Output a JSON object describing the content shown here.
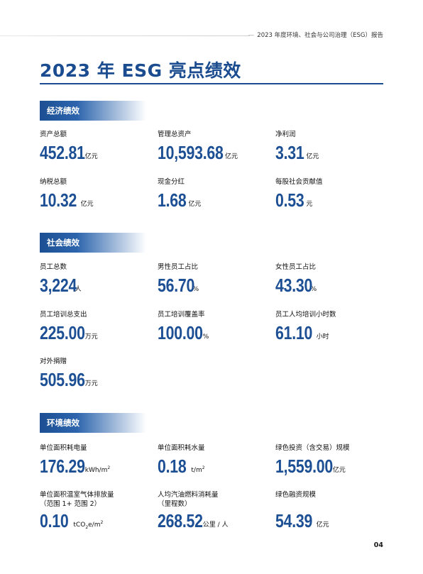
{
  "header": {
    "report_title": "2023 年度环境、社会与公司治理（ESG）报告"
  },
  "page_title": "2023 年 ESG 亮点绩效",
  "sections": {
    "economic": {
      "title": "经济绩效",
      "items": [
        {
          "label": "资产总额",
          "value": "452.81",
          "unit": "亿元"
        },
        {
          "label": "管理总资产",
          "value": "10,593.68",
          "unit": "亿元"
        },
        {
          "label": "净利润",
          "value": "3.31",
          "unit": "亿元"
        },
        {
          "label": "纳税总额",
          "value": "10.32",
          "unit": "亿元"
        },
        {
          "label": "现金分红",
          "value": "1.68",
          "unit": "亿元"
        },
        {
          "label": "每股社会贡献值",
          "value": "0.53",
          "unit": "元"
        }
      ]
    },
    "social": {
      "title": "社会绩效",
      "items": [
        {
          "label": "员工总数",
          "value": "3,224",
          "unit": "人"
        },
        {
          "label": "男性员工占比",
          "value": "56.70",
          "unit": "%"
        },
        {
          "label": "女性员工占比",
          "value": "43.30",
          "unit": "%"
        },
        {
          "label": "员工培训总支出",
          "value": "225.00",
          "unit": "万元"
        },
        {
          "label": "员工培训覆盖率",
          "value": "100.00",
          "unit": "%"
        },
        {
          "label": "员工人均培训小时数",
          "value": "61.10",
          "unit": "小时"
        },
        {
          "label": "对外捐赠",
          "value": "505.96",
          "unit": "万元"
        }
      ]
    },
    "environmental": {
      "title": "环境绩效",
      "items": [
        {
          "label": "单位面积耗电量",
          "value": "176.29",
          "unit_main": "kWh/m",
          "unit_sup": "2"
        },
        {
          "label": "单位面积耗水量",
          "value": "0.18",
          "unit_main": "t/m",
          "unit_sup": "2"
        },
        {
          "label": "绿色投资（含交易）规模",
          "value": "1,559.00",
          "unit": "亿元"
        },
        {
          "label": "单位面积温室气体排放量",
          "label2": "（范围 1+ 范围 2）",
          "value": "0.10",
          "unit_pre": "tCO",
          "unit_sub": "2",
          "unit_mid": "e/m",
          "unit_sup": "2"
        },
        {
          "label": "人均汽油燃料消耗量",
          "label2": "（里程数）",
          "value": "268.52",
          "unit": "公里 / 人"
        },
        {
          "label": "绿色融资规模",
          "value": "54.39",
          "unit": "亿元"
        }
      ]
    }
  },
  "page_number": "04"
}
